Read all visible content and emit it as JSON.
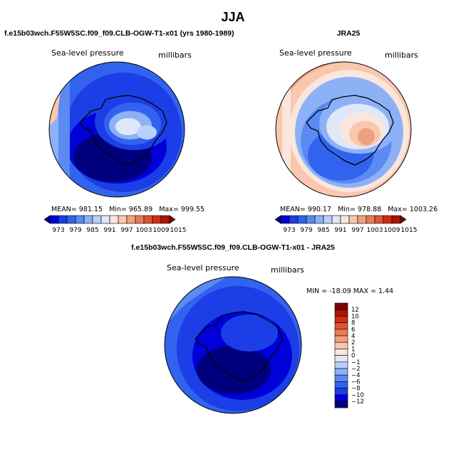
{
  "page_title": "JJA",
  "colors": {
    "bar_scale": [
      "#00007f",
      "#0000d8",
      "#1c3ee6",
      "#3263ee",
      "#5a8af2",
      "#8cb1f7",
      "#b9d0f9",
      "#dfe8fa",
      "#fae6dc",
      "#f8c7ae",
      "#f1a07f",
      "#ea7a57",
      "#e25331",
      "#d32c15",
      "#ad1406",
      "#7a0403"
    ],
    "diff_scale": [
      "#00007f",
      "#0000d8",
      "#1c3ee6",
      "#3263ee",
      "#5a8af2",
      "#8cb1f7",
      "#b9d0f9",
      "#dfe8fa",
      "#fae6dc",
      "#f8c7ae",
      "#f1a07f",
      "#ea7a57",
      "#e25331",
      "#d32c15",
      "#ad1406",
      "#7a0403"
    ]
  },
  "chart_data": [
    {
      "type": "heatmap",
      "panel": "model",
      "title": "f.e15b03wch.F55W5SC.f09_f09.CLB-OGW-T1-x01 (yrs 1980-1989)",
      "variable": "Sea-level pressure",
      "units": "millibars",
      "projection": "south polar stereographic",
      "colorbar_ticks": [
        "973",
        "979",
        "985",
        "991",
        "997",
        "1003",
        "1009",
        "1015"
      ],
      "stats": {
        "mean": "MEAN= 981.15",
        "min": "Min= 965.89",
        "max": "Max= 999.55"
      }
    },
    {
      "type": "heatmap",
      "panel": "obs",
      "title": "JRA25",
      "variable": "Sea-level pressure",
      "units": "millibars",
      "projection": "south polar stereographic",
      "colorbar_ticks": [
        "973",
        "979",
        "985",
        "991",
        "997",
        "1003",
        "1009",
        "1015"
      ],
      "stats": {
        "mean": "MEAN= 990.17",
        "min": "Min= 978.88",
        "max": "Max= 1003.26"
      }
    },
    {
      "type": "heatmap",
      "panel": "difference",
      "title": "f.e15b03wch.F55W5SC.f09_f09.CLB-OGW-T1-x01 - JRA25",
      "variable": "Sea-level pressure",
      "units": "millibars",
      "projection": "south polar stereographic",
      "minmax": "MIN = -18.09 MAX =   1.44",
      "colorbar_ticks": [
        "12",
        "10",
        "8",
        "6",
        "4",
        "2",
        "1",
        "0",
        "−1",
        "−2",
        "−4",
        "−6",
        "−8",
        "−10",
        "−12"
      ]
    }
  ]
}
